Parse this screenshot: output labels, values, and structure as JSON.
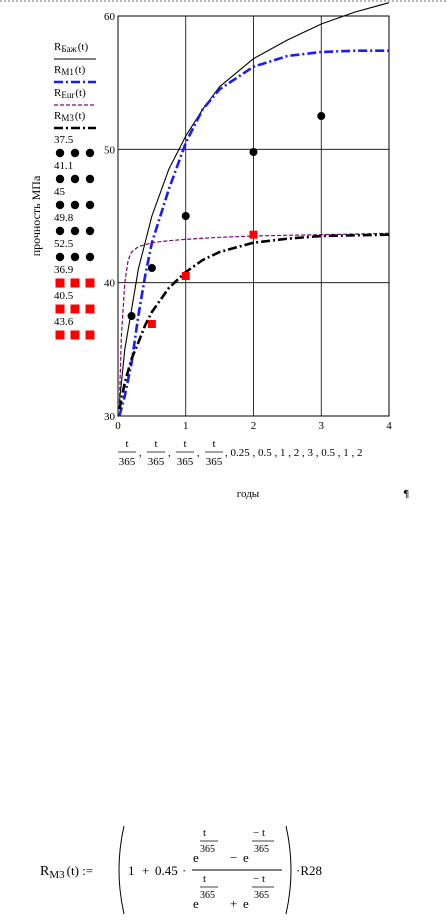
{
  "chart_data": {
    "type": "line",
    "ylabel": "прочность МПа",
    "xlabel": "годы",
    "xlim": [
      0,
      4
    ],
    "ylim": [
      30,
      60
    ],
    "x_ticks": [
      "0",
      "1",
      "2",
      "3",
      "4"
    ],
    "y_ticks": [
      "30",
      "40",
      "50",
      "60"
    ],
    "grid": true,
    "legend_position": "left",
    "x_expression_parts": [
      "t",
      "365",
      ", 0.25 , 0.5 , 1 , 2 , 3 , 0.5 , 1 , 2"
    ],
    "series": [
      {
        "name_main": "R",
        "name_sub": "Баж",
        "name_arg": "(t)",
        "style": "solid",
        "color": "#000000",
        "x": [
          0.02,
          0.1,
          0.2,
          0.3,
          0.5,
          0.75,
          1,
          1.25,
          1.5,
          2,
          2.5,
          3,
          3.5,
          4
        ],
        "y": [
          31,
          35,
          38,
          41,
          45,
          48.5,
          51,
          53,
          54.7,
          56.8,
          58.2,
          59.4,
          60.3,
          61
        ]
      },
      {
        "name_main": "R",
        "name_sub": "M1",
        "name_arg": "(t)",
        "style": "dashdot",
        "color": "#1a1aff",
        "x": [
          0.02,
          0.1,
          0.2,
          0.3,
          0.4,
          0.5,
          0.75,
          1,
          1.25,
          1.5,
          2,
          2.5,
          3,
          3.5,
          4
        ],
        "y": [
          30,
          31.5,
          34,
          37.5,
          40.5,
          43,
          47,
          50.5,
          53,
          54.5,
          56.2,
          57,
          57.3,
          57.4,
          57.4
        ]
      },
      {
        "name_main": "R",
        "name_sub": "Eur",
        "name_arg": "(t)",
        "style": "dashed",
        "color": "#800080",
        "x": [
          0.02,
          0.05,
          0.1,
          0.15,
          0.2,
          0.3,
          0.5,
          0.75,
          1,
          1.5,
          2,
          2.5,
          3,
          4
        ],
        "y": [
          31,
          36,
          40,
          41.7,
          42.3,
          42.7,
          43,
          43.15,
          43.25,
          43.4,
          43.5,
          43.55,
          43.6,
          43.7
        ]
      },
      {
        "name_main": "R",
        "name_sub": "M3",
        "name_arg": "(t)",
        "style": "dashdot",
        "color": "#000000",
        "x": [
          0.02,
          0.1,
          0.2,
          0.3,
          0.4,
          0.5,
          0.75,
          1,
          1.25,
          1.5,
          2,
          2.5,
          3,
          3.5,
          4
        ],
        "y": [
          30.5,
          32.5,
          34.3,
          35.5,
          36.8,
          37.8,
          39.6,
          40.8,
          41.7,
          42.3,
          43,
          43.3,
          43.5,
          43.55,
          43.6
        ]
      }
    ],
    "point_sets": [
      {
        "marker": "circle",
        "color": "#000000",
        "legend_values": [
          "37.5",
          "41.1",
          "45",
          "49.8",
          "52.5"
        ],
        "x": [
          0.2,
          0.5,
          1,
          2,
          3
        ],
        "y": [
          37.5,
          41.1,
          45,
          49.8,
          52.5
        ]
      },
      {
        "marker": "square",
        "color": "#ff0000",
        "legend_values": [
          "36.9",
          "40.5",
          "43.6"
        ],
        "x": [
          0.5,
          1,
          2
        ],
        "y": [
          36.9,
          40.5,
          43.6
        ]
      }
    ]
  },
  "formula": {
    "lhs_main": "R",
    "lhs_sub": "M3",
    "lhs_arg": "(t) :=",
    "one": "1",
    "plus": "+",
    "coef": "0.45",
    "dot": "·",
    "e": "e",
    "t": "t",
    "neg_t": "− t",
    "denom": "365",
    "minus": "−",
    "tail": "·R28"
  },
  "pilcrow": "¶"
}
